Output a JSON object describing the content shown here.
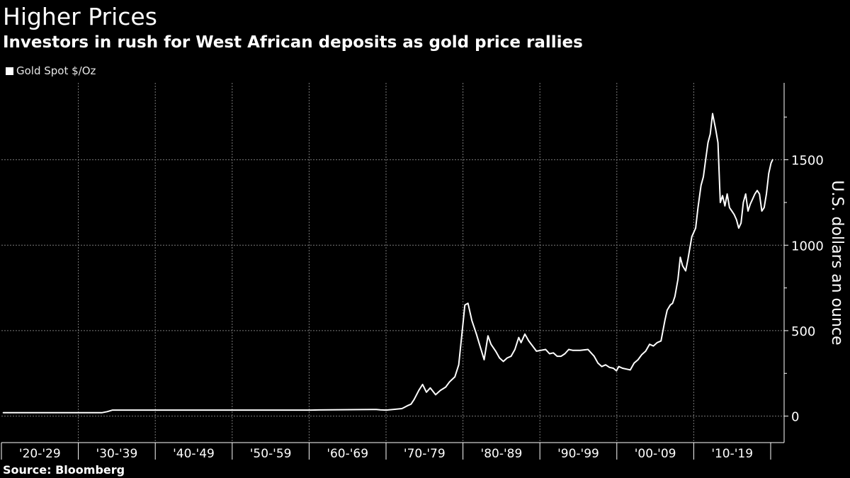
{
  "header": {
    "title": "Higher Prices",
    "subtitle": "Investors in rush for West African deposits as gold price rallies"
  },
  "footer": {
    "source": "Source: Bloomberg"
  },
  "colors": {
    "background": "#000000",
    "line": "#ffffff",
    "grid": "#7a7a7a"
  },
  "chart_data": {
    "type": "line",
    "title": "Higher Prices",
    "subtitle": "Investors in rush for West African deposits as gold price rallies",
    "ylabel": "U.S. dollars an ounce",
    "xlabel": "",
    "ylim": [
      -155,
      1950
    ],
    "xlim": [
      1919.75,
      2021.5
    ],
    "yticks": [
      0,
      500,
      1000,
      1500
    ],
    "x_categories": [
      "'20-'29",
      "'30-'39",
      "'40-'49",
      "'50-'59",
      "'60-'69",
      "'70-'79",
      "'80-'89",
      "'90-'99",
      "'00-'09",
      "'10-'19"
    ],
    "legend": {
      "position": "top-left",
      "entries": [
        "Gold Spot $/Oz"
      ]
    },
    "grid": true,
    "series": [
      {
        "name": "Gold Spot $/Oz",
        "x": [
          1920,
          1925,
          1930,
          1932.8,
          1933.5,
          1934.2,
          1940,
          1950,
          1959,
          1960,
          1961,
          1968,
          1968.5,
          1969,
          1969.8,
          1970,
          1971,
          1971.8,
          1972,
          1972.5,
          1973,
          1973.4,
          1974,
          1974.5,
          1975,
          1975.5,
          1976.2,
          1976.8,
          1977.5,
          1978,
          1978.7,
          1979.2,
          1979.7,
          1980,
          1980.4,
          1980.9,
          1981.5,
          1981.9,
          1982.5,
          1983,
          1983.4,
          1984,
          1984.5,
          1985,
          1985.5,
          1986,
          1986.5,
          1987,
          1987.3,
          1987.8,
          1988.3,
          1988.8,
          1989.3,
          1989.9,
          1990.5,
          1991,
          1991.5,
          1992,
          1992.5,
          1993,
          1993.5,
          1994,
          1995,
          1996,
          1996.8,
          1997.3,
          1997.8,
          1998.3,
          1998.8,
          1999.3,
          1999.7,
          2000,
          2000.5,
          2001,
          2001.5,
          2002,
          2002.5,
          2003,
          2003.5,
          2004,
          2004.5,
          2005,
          2005.5,
          2006,
          2006.3,
          2006.7,
          2007,
          2007.3,
          2007.7,
          2008,
          2008.3,
          2008.7,
          2009,
          2009.5,
          2010,
          2010.3,
          2010.7,
          2011,
          2011.3,
          2011.6,
          2011.9,
          2012.2,
          2012.6,
          2012.9,
          2013.2,
          2013.5,
          2013.8,
          2014.1,
          2014.4,
          2014.7,
          2015,
          2015.3,
          2015.6,
          2015.9,
          2016.2,
          2016.5,
          2016.8,
          2017.1,
          2017.4,
          2017.7,
          2018,
          2018.3,
          2018.6,
          2018.9,
          2019.2,
          2019.5,
          2019.8,
          2020
        ],
        "values": [
          20,
          20,
          20,
          20,
          26,
          35,
          35,
          35,
          35,
          35,
          36,
          39,
          39,
          37,
          35,
          36,
          40,
          44,
          48,
          60,
          70,
          97,
          150,
          185,
          140,
          165,
          125,
          150,
          170,
          200,
          230,
          300,
          520,
          650,
          660,
          560,
          480,
          420,
          330,
          470,
          420,
          380,
          340,
          320,
          340,
          350,
          390,
          460,
          430,
          480,
          440,
          410,
          380,
          385,
          390,
          365,
          370,
          350,
          350,
          365,
          390,
          385,
          385,
          390,
          350,
          310,
          290,
          300,
          285,
          280,
          265,
          290,
          280,
          275,
          270,
          310,
          330,
          360,
          380,
          420,
          410,
          430,
          440,
          560,
          620,
          650,
          660,
          700,
          800,
          930,
          880,
          850,
          920,
          1050,
          1100,
          1220,
          1350,
          1400,
          1500,
          1600,
          1650,
          1770,
          1680,
          1600,
          1250,
          1290,
          1230,
          1300,
          1220,
          1200,
          1180,
          1150,
          1100,
          1130,
          1250,
          1300,
          1200,
          1240,
          1270,
          1300,
          1320,
          1300,
          1200,
          1220,
          1300,
          1420,
          1480,
          1500
        ]
      }
    ]
  }
}
